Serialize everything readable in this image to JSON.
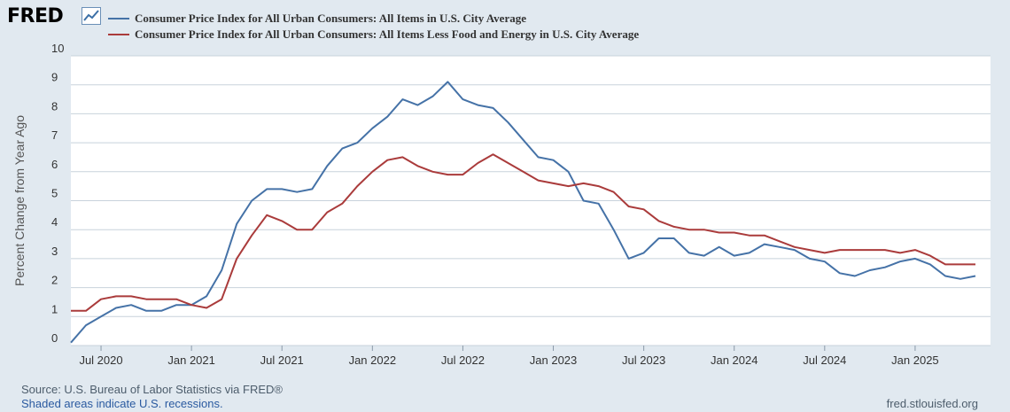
{
  "header": {
    "logo_text": "FRED"
  },
  "footer": {
    "source": "Source: U.S. Bureau of Labor Statistics via FRED®",
    "recession_note": "Shaded areas indicate U.S. recessions.",
    "site": "fred.stlouisfed.org"
  },
  "colors": {
    "background": "#e1e9f0",
    "plot_background": "#ffffff",
    "gridline": "#c8d2db",
    "series_1": "#4572a7",
    "series_2": "#aa3b3b"
  },
  "chart_data": {
    "type": "line",
    "title": "",
    "xlabel": "",
    "ylabel": "Percent Change from Year Ago",
    "ylim": [
      0,
      10
    ],
    "yticks": [
      0,
      1,
      2,
      3,
      4,
      5,
      6,
      7,
      8,
      9,
      10
    ],
    "grid": true,
    "legend_position": "top-left",
    "x_range": [
      "2020-05",
      "2025-06"
    ],
    "x_ticks": [
      {
        "date": "2020-07",
        "label": "Jul 2020"
      },
      {
        "date": "2021-01",
        "label": "Jan 2021"
      },
      {
        "date": "2021-07",
        "label": "Jul 2021"
      },
      {
        "date": "2022-01",
        "label": "Jan 2022"
      },
      {
        "date": "2022-07",
        "label": "Jul 2022"
      },
      {
        "date": "2023-01",
        "label": "Jan 2023"
      },
      {
        "date": "2023-07",
        "label": "Jul 2023"
      },
      {
        "date": "2024-01",
        "label": "Jan 2024"
      },
      {
        "date": "2024-07",
        "label": "Jul 2024"
      },
      {
        "date": "2025-01",
        "label": "Jan 2025"
      }
    ],
    "x": [
      "2020-05",
      "2020-06",
      "2020-07",
      "2020-08",
      "2020-09",
      "2020-10",
      "2020-11",
      "2020-12",
      "2021-01",
      "2021-02",
      "2021-03",
      "2021-04",
      "2021-05",
      "2021-06",
      "2021-07",
      "2021-08",
      "2021-09",
      "2021-10",
      "2021-11",
      "2021-12",
      "2022-01",
      "2022-02",
      "2022-03",
      "2022-04",
      "2022-05",
      "2022-06",
      "2022-07",
      "2022-08",
      "2022-09",
      "2022-10",
      "2022-11",
      "2022-12",
      "2023-01",
      "2023-02",
      "2023-03",
      "2023-04",
      "2023-05",
      "2023-06",
      "2023-07",
      "2023-08",
      "2023-09",
      "2023-10",
      "2023-11",
      "2023-12",
      "2024-01",
      "2024-02",
      "2024-03",
      "2024-04",
      "2024-05",
      "2024-06",
      "2024-07",
      "2024-08",
      "2024-09",
      "2024-10",
      "2024-11",
      "2024-12",
      "2025-01",
      "2025-02",
      "2025-03",
      "2025-04",
      "2025-05"
    ],
    "series": [
      {
        "name": "Consumer Price Index for All Urban Consumers: All Items in U.S. City Average",
        "color": "#4572a7",
        "values": [
          0.1,
          0.7,
          1.0,
          1.3,
          1.4,
          1.2,
          1.2,
          1.4,
          1.4,
          1.7,
          2.6,
          4.2,
          5.0,
          5.4,
          5.4,
          5.3,
          5.4,
          6.2,
          6.8,
          7.0,
          7.5,
          7.9,
          8.5,
          8.3,
          8.6,
          9.1,
          8.5,
          8.3,
          8.2,
          7.7,
          7.1,
          6.5,
          6.4,
          6.0,
          5.0,
          4.9,
          4.0,
          3.0,
          3.2,
          3.7,
          3.7,
          3.2,
          3.1,
          3.4,
          3.1,
          3.2,
          3.5,
          3.4,
          3.3,
          3.0,
          2.9,
          2.5,
          2.4,
          2.6,
          2.7,
          2.9,
          3.0,
          2.8,
          2.4,
          2.3,
          2.4
        ]
      },
      {
        "name": "Consumer Price Index for All Urban Consumers: All Items Less Food and Energy in U.S. City Average",
        "color": "#aa3b3b",
        "values": [
          1.2,
          1.2,
          1.6,
          1.7,
          1.7,
          1.6,
          1.6,
          1.6,
          1.4,
          1.3,
          1.6,
          3.0,
          3.8,
          4.5,
          4.3,
          4.0,
          4.0,
          4.6,
          4.9,
          5.5,
          6.0,
          6.4,
          6.5,
          6.2,
          6.0,
          5.9,
          5.9,
          6.3,
          6.6,
          6.3,
          6.0,
          5.7,
          5.6,
          5.5,
          5.6,
          5.5,
          5.3,
          4.8,
          4.7,
          4.3,
          4.1,
          4.0,
          4.0,
          3.9,
          3.9,
          3.8,
          3.8,
          3.6,
          3.4,
          3.3,
          3.2,
          3.3,
          3.3,
          3.3,
          3.3,
          3.2,
          3.3,
          3.1,
          2.8,
          2.8,
          2.8
        ]
      }
    ]
  }
}
